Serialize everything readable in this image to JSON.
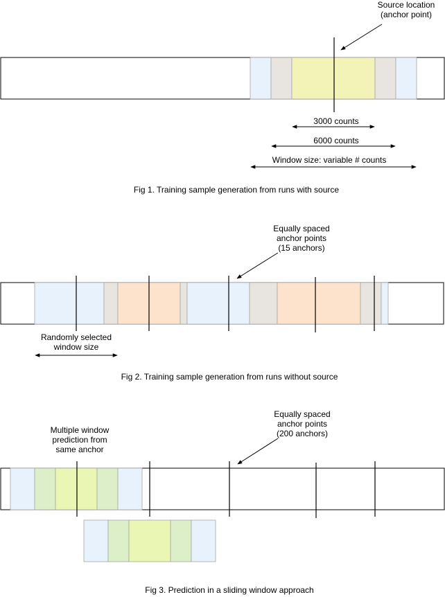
{
  "fig1": {
    "source_label_line1": "Source location",
    "source_label_line2": "(anchor point)",
    "dim_3000": "3000 counts",
    "dim_6000": "6000 counts",
    "dim_window": "Window size: variable # counts",
    "caption": "Fig 1. Training sample generation from runs with source"
  },
  "fig2": {
    "anchor_label_line1": "Equally spaced",
    "anchor_label_line2": "anchor points",
    "anchor_label_line3": "(15 anchors)",
    "window_label_line1": "Randomly selected",
    "window_label_line2": "window size",
    "caption": "Fig 2. Training sample generation from runs without source"
  },
  "fig3": {
    "multi_label_line1": "Multiple window",
    "multi_label_line2": "prediction from",
    "multi_label_line3": "same anchor",
    "anchor_label_line1": "Equally spaced",
    "anchor_label_line2": "anchor points",
    "anchor_label_line3": "(200 anchors)",
    "caption": "Fig 3. Prediction in a sliding window approach"
  },
  "colors": {
    "light_blue": "#e8f2fc",
    "light_gray": "#e8e4e0",
    "light_yellow": "#f3f3b8",
    "light_orange": "#fde3cb",
    "light_green": "#dcefc8",
    "lime": "#eaf6b4",
    "stroke": "#000000",
    "segment_stroke": "#a6a6a6"
  }
}
